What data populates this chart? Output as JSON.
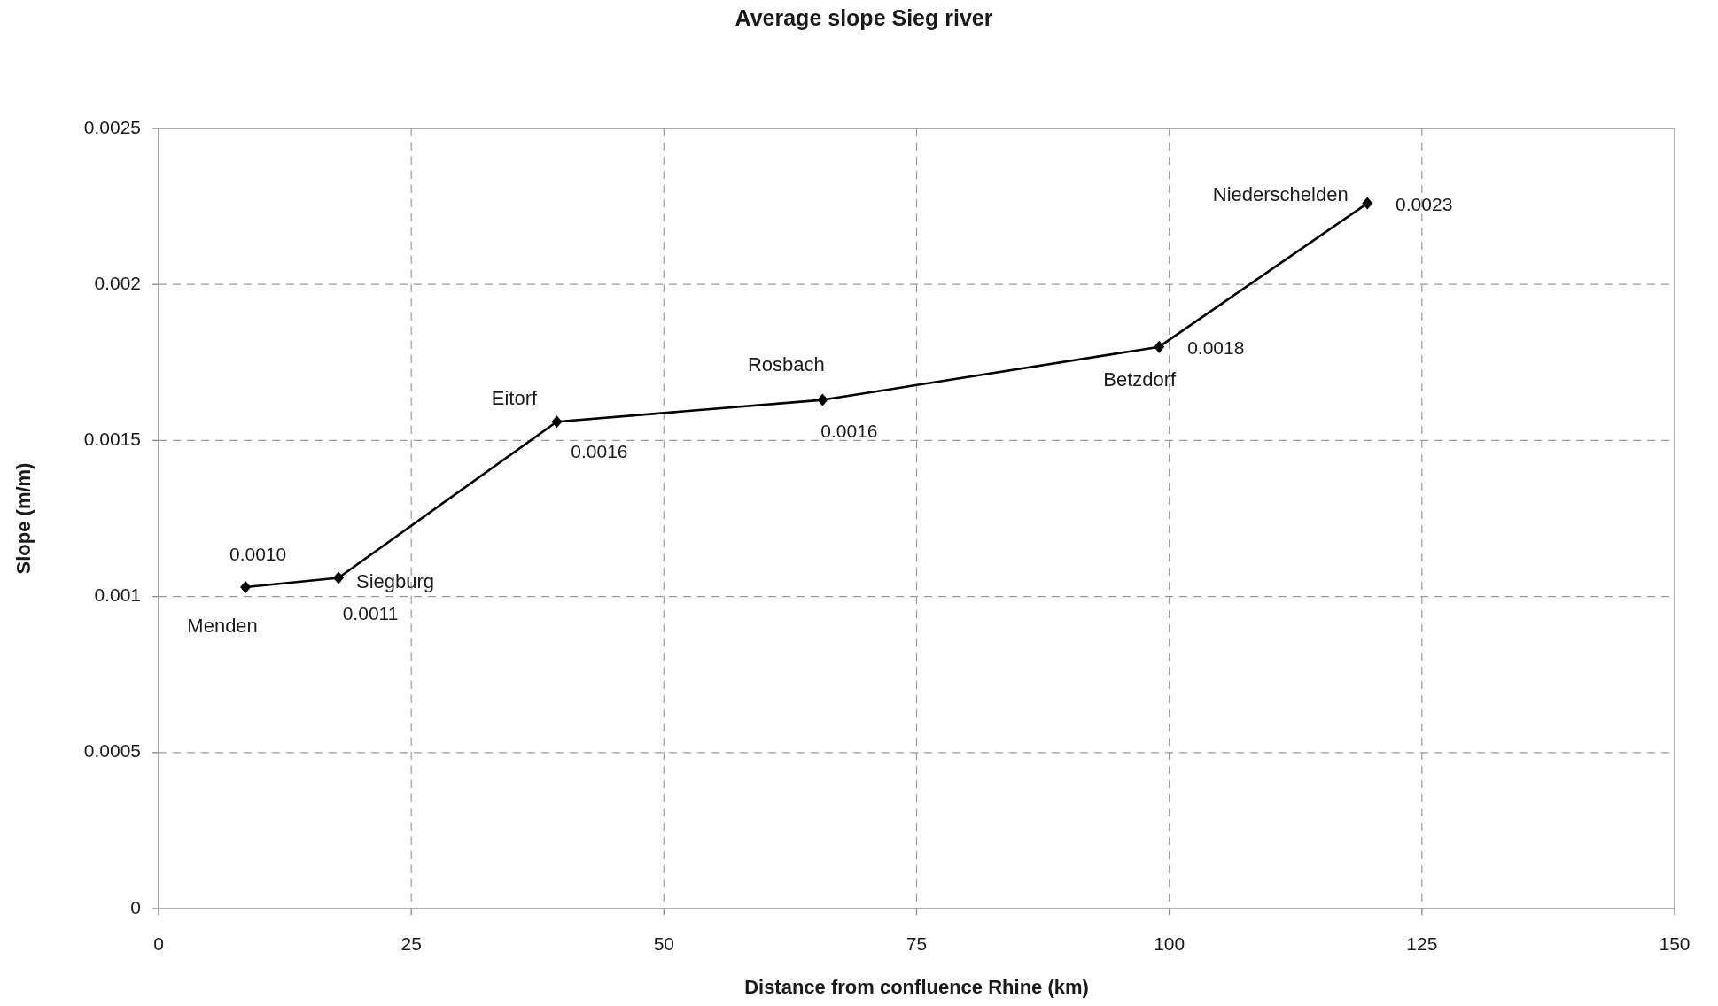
{
  "chart_data": {
    "type": "line",
    "title": "Average slope Sieg river",
    "xlabel": "Distance from confluence Rhine (km)",
    "ylabel": "Slope (m/m)",
    "x": [
      8.6,
      17.8,
      39.4,
      65.7,
      99,
      119.6
    ],
    "series": [
      {
        "color": "#000000",
        "values": [
          0.00103,
          0.00106,
          0.00156,
          0.00163,
          0.0018,
          0.00226
        ],
        "value_labels": [
          "0.0010",
          "0.0011",
          "0.0016",
          "0.0016",
          "0.0018",
          "0.0023"
        ]
      }
    ],
    "xlim": [
      0,
      150
    ],
    "xticks": [
      0,
      25,
      50,
      75,
      100,
      125,
      150
    ],
    "ylim": [
      0,
      0.0025
    ],
    "yticks": [
      0,
      0.0005,
      0.001,
      0.0015,
      0.002,
      0.0025
    ],
    "grid": true,
    "marker": "diamond",
    "line_style": "solid",
    "annotations": [
      {
        "text": "Menden",
        "x": 8.6,
        "y": 0.00103
      },
      {
        "text": "Siegburg",
        "x": 17.8,
        "y": 0.00106
      },
      {
        "text": "Eitorf",
        "x": 39.4,
        "y": 0.00156
      },
      {
        "text": "Rosbach",
        "x": 65.7,
        "y": 0.00163
      },
      {
        "text": "Betzdorf",
        "x": 99,
        "y": 0.0018
      },
      {
        "text": "Niederschelden",
        "x": 119.6,
        "y": 0.00226
      }
    ]
  }
}
